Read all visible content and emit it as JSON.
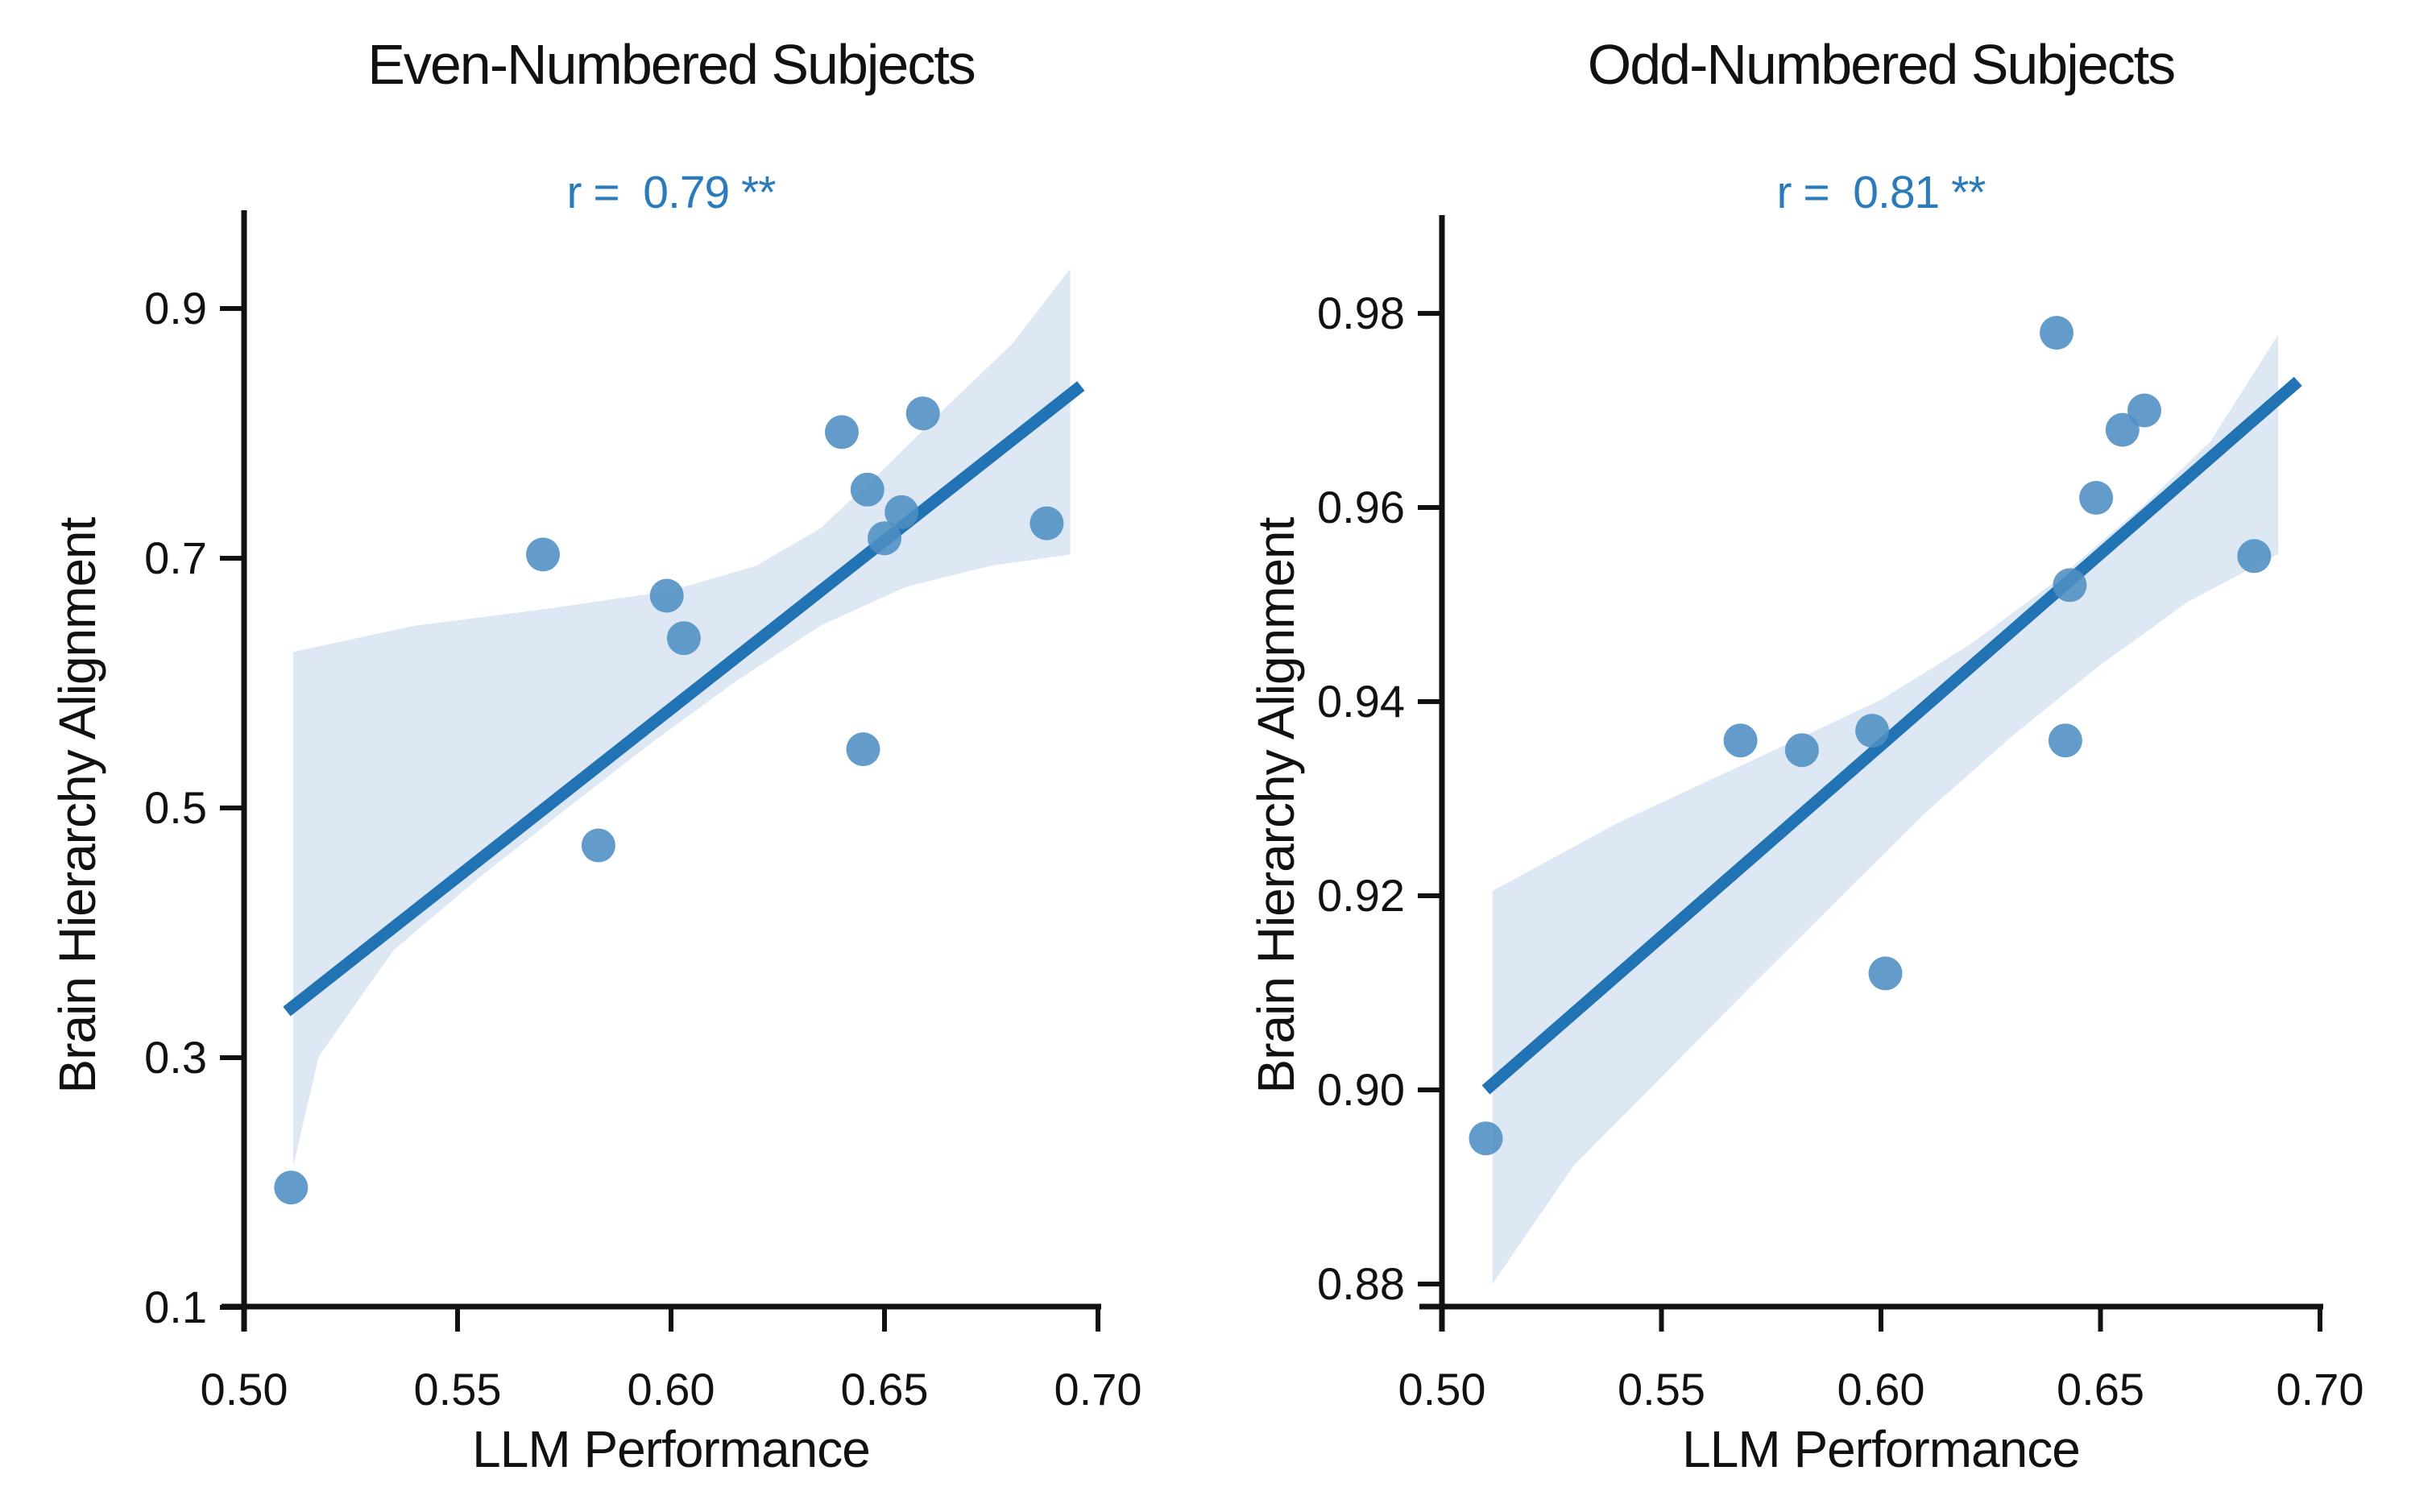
{
  "figure": {
    "background": "#ffffff",
    "text_color": "#111111",
    "accent_blue": "#2B7BBB",
    "dot_color": "#4D8EC3",
    "trend_color": "#2173B3",
    "band_color": "#DDE8F4",
    "axis_color": "#111111"
  },
  "chart_data": [
    {
      "type": "scatter",
      "title": "Even-Numbered Subjects",
      "r_label": "r =  0.79 **",
      "r_value": 0.79,
      "significance": "**",
      "xlabel": "LLM Performance",
      "ylabel": "Brain Hierarchy Alignment",
      "xlim": [
        0.5,
        0.7
      ],
      "ylim": [
        0.1,
        0.9
      ],
      "grid": false,
      "legend": null,
      "x_tick_values": [
        0.5,
        0.55,
        0.6,
        0.65,
        0.7
      ],
      "x_ticks": [
        "0.50",
        "0.55",
        "0.60",
        "0.65",
        "0.70"
      ],
      "y_tick_values": [
        0.9,
        0.7,
        0.5,
        0.3,
        0.1
      ],
      "y_ticks": [
        "0.9",
        "0.7",
        "0.5",
        "0.3",
        "0.1"
      ],
      "points": [
        [
          0.511,
          0.196
        ],
        [
          0.57,
          0.703
        ],
        [
          0.599,
          0.67
        ],
        [
          0.603,
          0.636
        ],
        [
          0.583,
          0.47
        ],
        [
          0.64,
          0.801
        ],
        [
          0.659,
          0.816
        ],
        [
          0.646,
          0.755
        ],
        [
          0.654,
          0.737
        ],
        [
          0.65,
          0.716
        ],
        [
          0.688,
          0.728
        ],
        [
          0.645,
          0.547
        ]
      ],
      "trend": {
        "x1": 0.51,
        "y1": 0.337,
        "x2": 0.696,
        "y2": 0.838
      },
      "band_top": [
        [
          0.5115,
          0.625
        ],
        [
          0.54,
          0.646
        ],
        [
          0.57,
          0.659
        ],
        [
          0.6,
          0.674
        ],
        [
          0.62,
          0.694
        ],
        [
          0.635,
          0.724
        ],
        [
          0.65,
          0.772
        ],
        [
          0.665,
          0.823
        ],
        [
          0.68,
          0.872
        ],
        [
          0.6935,
          0.932
        ]
      ],
      "band_bottom": [
        [
          0.6935,
          0.703
        ],
        [
          0.675,
          0.694
        ],
        [
          0.655,
          0.677
        ],
        [
          0.635,
          0.646
        ],
        [
          0.615,
          0.601
        ],
        [
          0.595,
          0.551
        ],
        [
          0.575,
          0.498
        ],
        [
          0.555,
          0.444
        ],
        [
          0.535,
          0.386
        ],
        [
          0.5175,
          0.301
        ],
        [
          0.5115,
          0.213
        ]
      ]
    },
    {
      "type": "scatter",
      "title": "Odd-Numbered Subjects",
      "r_label": "r =  0.81 **",
      "r_value": 0.81,
      "significance": "**",
      "xlabel": "LLM Performance",
      "ylabel": "Brain Hierarchy Alignment",
      "xlim": [
        0.5,
        0.7
      ],
      "ylim": [
        0.88,
        0.98
      ],
      "grid": false,
      "legend": null,
      "x_tick_values": [
        0.5,
        0.55,
        0.6,
        0.65,
        0.7
      ],
      "x_ticks": [
        "0.50",
        "0.55",
        "0.60",
        "0.65",
        "0.70"
      ],
      "y_tick_values": [
        0.98,
        0.96,
        0.94,
        0.92,
        0.9,
        0.88
      ],
      "y_ticks": [
        "0.98",
        "0.96",
        "0.94",
        "0.92",
        "0.90",
        "0.88"
      ],
      "points": [
        [
          0.51,
          0.895
        ],
        [
          0.568,
          0.936
        ],
        [
          0.582,
          0.935
        ],
        [
          0.598,
          0.937
        ],
        [
          0.601,
          0.912
        ],
        [
          0.64,
          0.978
        ],
        [
          0.643,
          0.952
        ],
        [
          0.649,
          0.961
        ],
        [
          0.655,
          0.968
        ],
        [
          0.66,
          0.97
        ],
        [
          0.642,
          0.936
        ],
        [
          0.685,
          0.955
        ]
      ],
      "trend": {
        "x1": 0.51,
        "y1": 0.9,
        "x2": 0.695,
        "y2": 0.973
      },
      "band_top": [
        [
          0.5115,
          0.9205
        ],
        [
          0.54,
          0.9275
        ],
        [
          0.57,
          0.9338
        ],
        [
          0.6,
          0.9402
        ],
        [
          0.62,
          0.9458
        ],
        [
          0.64,
          0.9525
        ],
        [
          0.66,
          0.9603
        ],
        [
          0.675,
          0.9668
        ],
        [
          0.6905,
          0.9778
        ]
      ],
      "band_bottom": [
        [
          0.6905,
          0.9552
        ],
        [
          0.67,
          0.9503
        ],
        [
          0.65,
          0.9438
        ],
        [
          0.63,
          0.9365
        ],
        [
          0.61,
          0.9285
        ],
        [
          0.59,
          0.9195
        ],
        [
          0.57,
          0.9105
        ],
        [
          0.55,
          0.9013
        ],
        [
          0.53,
          0.8922
        ],
        [
          0.5115,
          0.88
        ]
      ]
    }
  ]
}
